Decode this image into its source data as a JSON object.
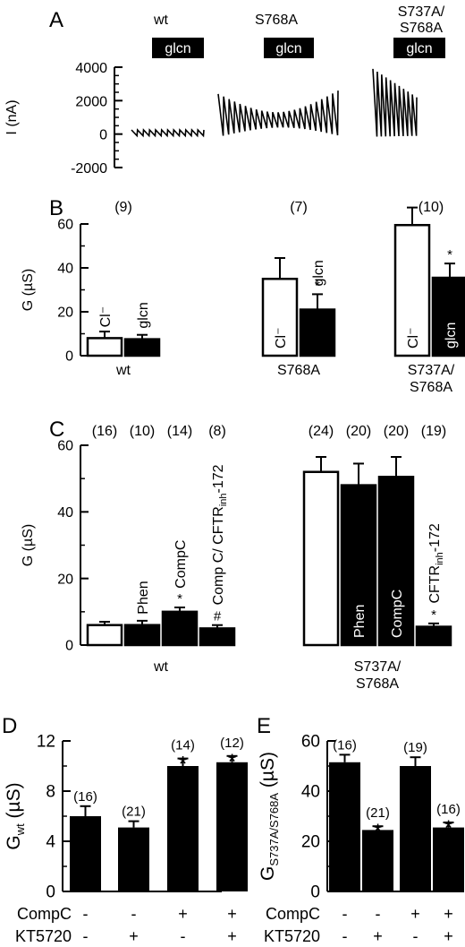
{
  "panel_labels": {
    "a": "A",
    "b": "B",
    "c": "C",
    "d": "D",
    "e": "E"
  },
  "colors": {
    "ink": "#000000",
    "paper": "#ffffff"
  },
  "chart_data": [
    {
      "panel": "A",
      "type": "line",
      "ylabel": "I (nA)",
      "yticks": [
        4000,
        2000,
        0,
        -2000
      ],
      "ylim": [
        -2000,
        4000
      ],
      "bar_label": "glcn",
      "traces": [
        {
          "name": "wt",
          "cycles": 12,
          "min": -100,
          "max": 250
        },
        {
          "name": "S768A",
          "cycles": 22,
          "min_start": -100,
          "max_start": 2400,
          "min_mid": 400,
          "max_mid": 1300,
          "min_end": -150,
          "max_end": 2600
        },
        {
          "name": "S737A/\nS768A",
          "cycles": 10,
          "min_start": -150,
          "max_start": 3900,
          "min_end": -100,
          "max_end": 2200
        }
      ]
    },
    {
      "panel": "B",
      "type": "bar",
      "ylabel": "G (µS)",
      "ylim": [
        0,
        60
      ],
      "yticks": [
        0,
        20,
        40,
        60
      ],
      "groups": [
        {
          "name": "wt",
          "n": "(9)",
          "bars": [
            {
              "label": "Cl⁻",
              "value": 8,
              "err": 3,
              "fill": "open",
              "sig": ""
            },
            {
              "label": "glcn",
              "value": 7.5,
              "err": 2,
              "fill": "filled",
              "sig": ""
            }
          ]
        },
        {
          "name": "S768A",
          "n": "(7)",
          "bars": [
            {
              "label": "Cl⁻",
              "value": 35,
              "err": 9.5,
              "fill": "open",
              "sig": ""
            },
            {
              "label": "glcn",
              "value": 21,
              "err": 7,
              "fill": "filled",
              "sig": "*"
            }
          ]
        },
        {
          "name": "S737A/\nS768A",
          "n": "(10)",
          "bars": [
            {
              "label": "Cl⁻",
              "value": 59.5,
              "err": 8,
              "fill": "open",
              "sig": ""
            },
            {
              "label": "glcn",
              "value": 35.5,
              "err": 6.5,
              "fill": "filled",
              "sig": "*"
            }
          ]
        }
      ]
    },
    {
      "panel": "C",
      "type": "bar",
      "ylabel": "G (µS)",
      "ylim": [
        0,
        60
      ],
      "yticks": [
        0,
        20,
        40,
        60
      ],
      "groups": [
        {
          "name": "wt",
          "bars": [
            {
              "n": "(16)",
              "label": "",
              "value": 6,
              "err": 1,
              "fill": "open",
              "sig": ""
            },
            {
              "n": "(10)",
              "label": "Phen",
              "value": 6,
              "err": 1.3,
              "fill": "filled",
              "sig": ""
            },
            {
              "n": "(14)",
              "label": "CompC",
              "value": 10,
              "err": 1.3,
              "fill": "filled",
              "sig": "*"
            },
            {
              "n": "(8)",
              "label": "Comp C/ CFTR",
              "label_sub": "inh",
              "label_tail": "-172",
              "value": 5,
              "err": 1,
              "fill": "filled",
              "sig": "#"
            }
          ]
        },
        {
          "name": "S737A/\nS768A",
          "bars": [
            {
              "n": "(24)",
              "label": "",
              "value": 52,
              "err": 4.5,
              "fill": "open",
              "sig": ""
            },
            {
              "n": "(20)",
              "label": "Phen",
              "value": 48,
              "err": 6.5,
              "fill": "filled",
              "sig": ""
            },
            {
              "n": "(20)",
              "label": "CompC",
              "value": 50.5,
              "err": 6,
              "fill": "filled",
              "sig": ""
            },
            {
              "n": "(19)",
              "label": "CFTR",
              "label_sub": "inh",
              "label_tail": "-172",
              "value": 5.5,
              "err": 1,
              "fill": "filled",
              "sig": "*"
            }
          ]
        }
      ]
    },
    {
      "panel": "D",
      "type": "bar",
      "ylabel": "G",
      "ylabel_sub": "wt",
      "ylabel_tail": " (µS)",
      "ylim": [
        0,
        12
      ],
      "yticks": [
        0,
        4,
        8,
        12
      ],
      "categories": [
        "1",
        "2",
        "3",
        "4"
      ],
      "values": [
        6,
        5.1,
        10,
        10.3
      ],
      "errors": [
        0.8,
        0.5,
        0.6,
        0.5
      ],
      "n": [
        "(16)",
        "(21)",
        "(14)",
        "(12)"
      ],
      "sig": [
        "",
        "",
        "*",
        "*"
      ],
      "rows": [
        {
          "label": "CompC",
          "marks": [
            "-",
            "-",
            "+",
            "+"
          ]
        },
        {
          "label": "KT5720",
          "marks": [
            "-",
            "+",
            "-",
            "+"
          ]
        }
      ]
    },
    {
      "panel": "E",
      "type": "bar",
      "ylabel": "G",
      "ylabel_sub": "S737A/S768A",
      "ylabel_tail": " (µS)",
      "ylim": [
        0,
        60
      ],
      "yticks": [
        0,
        20,
        40,
        60
      ],
      "categories": [
        "1",
        "2",
        "3",
        "4"
      ],
      "values": [
        51.5,
        24.5,
        50,
        25.5
      ],
      "errors": [
        3,
        1.5,
        3.5,
        2
      ],
      "n": [
        "(16)",
        "(21)",
        "(19)",
        "(16)"
      ],
      "sig": [
        "",
        "*",
        "",
        "*"
      ],
      "rows": [
        {
          "label": "CompC",
          "marks": [
            "-",
            "-",
            "+",
            "+"
          ]
        },
        {
          "label": "KT5720",
          "marks": [
            "-",
            "+",
            "-",
            "+"
          ]
        }
      ]
    }
  ]
}
